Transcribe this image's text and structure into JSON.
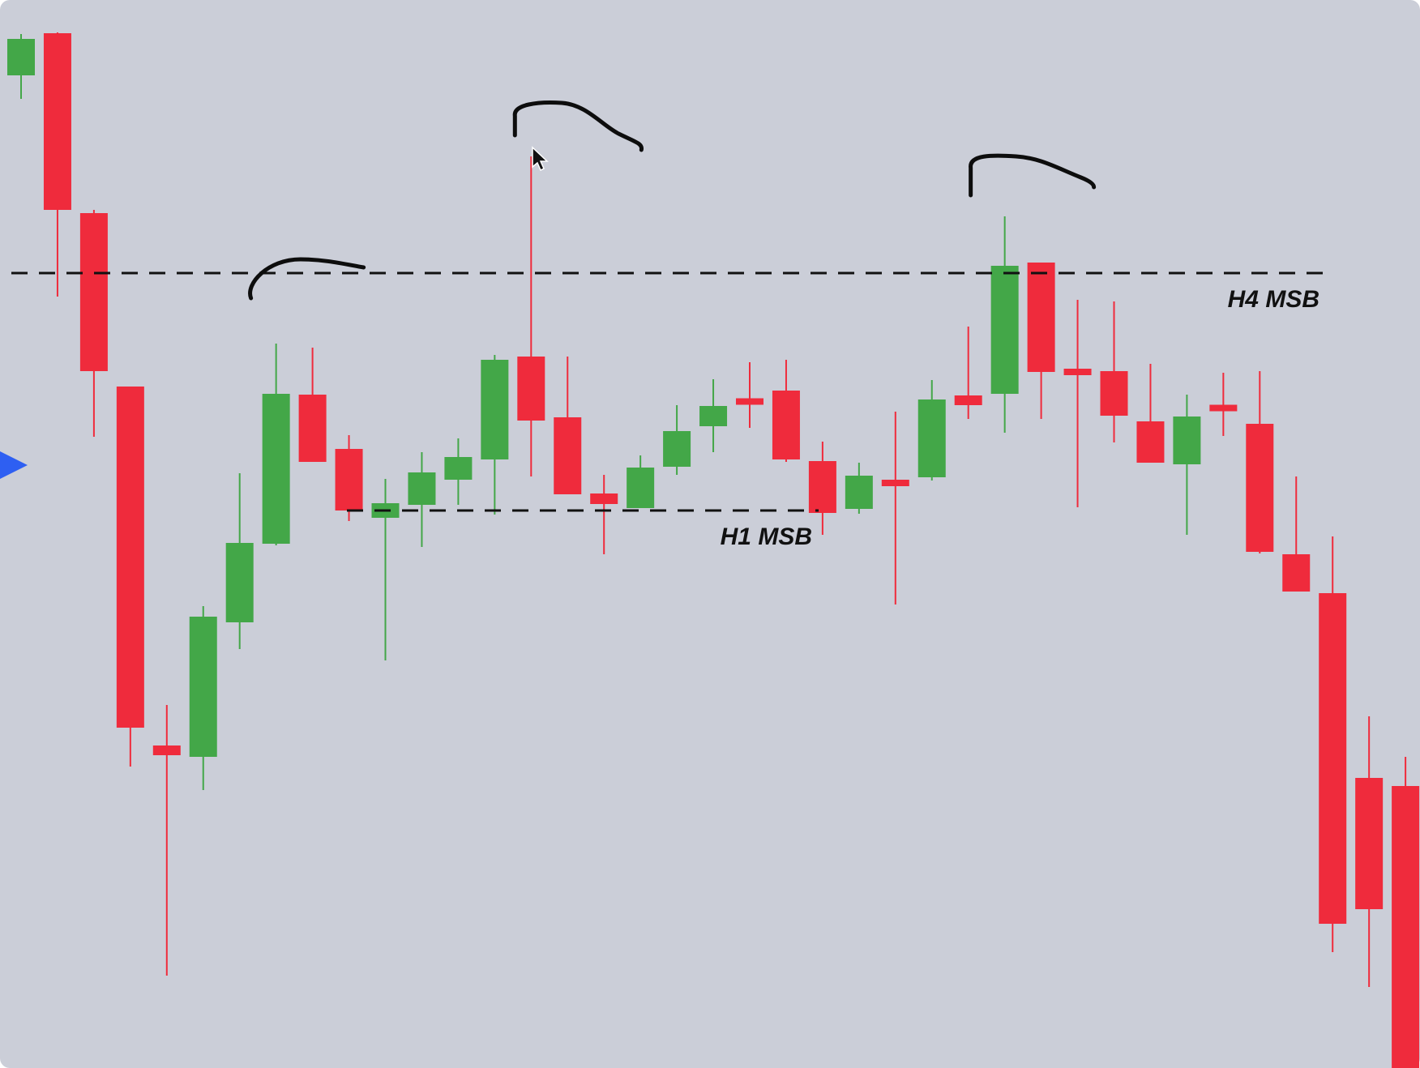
{
  "chart_data": {
    "type": "candlestick",
    "background": "#cbced8",
    "up_color": "#43a748",
    "down_color": "#ef2b3c",
    "ylim": [
      0,
      1318
    ],
    "candles": [
      {
        "open": 1225,
        "close": 1270,
        "high": 1276,
        "low": 1196
      },
      {
        "open": 1277,
        "close": 1059,
        "high": 1278,
        "low": 952
      },
      {
        "open": 1055,
        "close": 860,
        "high": 1059,
        "low": 779
      },
      {
        "open": 841,
        "close": 420,
        "high": 841,
        "low": 372
      },
      {
        "open": 398,
        "close": 386,
        "high": 448,
        "low": 114
      },
      {
        "open": 384,
        "close": 557,
        "high": 570,
        "low": 343
      },
      {
        "open": 550,
        "close": 648,
        "high": 734,
        "low": 517
      },
      {
        "open": 647,
        "close": 832,
        "high": 894,
        "low": 645
      },
      {
        "open": 831,
        "close": 748,
        "high": 889,
        "low": 748
      },
      {
        "open": 764,
        "close": 688,
        "high": 781,
        "low": 675
      },
      {
        "open": 679,
        "close": 697,
        "high": 727,
        "low": 503
      },
      {
        "open": 695,
        "close": 735,
        "high": 760,
        "low": 643
      },
      {
        "open": 726,
        "close": 754,
        "high": 777,
        "low": 695
      },
      {
        "open": 751,
        "close": 874,
        "high": 880,
        "low": 683
      },
      {
        "open": 878,
        "close": 799,
        "high": 1125,
        "low": 730
      },
      {
        "open": 803,
        "close": 708,
        "high": 878,
        "low": 708
      },
      {
        "open": 709,
        "close": 696,
        "high": 732,
        "low": 634
      },
      {
        "open": 691,
        "close": 741,
        "high": 756,
        "low": 691
      },
      {
        "open": 742,
        "close": 786,
        "high": 818,
        "low": 732
      },
      {
        "open": 792,
        "close": 817,
        "high": 850,
        "low": 760
      },
      {
        "open": 824,
        "close": 821,
        "high": 871,
        "low": 790
      },
      {
        "open": 836,
        "close": 751,
        "high": 874,
        "low": 748
      },
      {
        "open": 749,
        "close": 685,
        "high": 773,
        "low": 658
      },
      {
        "open": 690,
        "close": 731,
        "high": 747,
        "low": 684
      },
      {
        "open": 724,
        "close": 720,
        "high": 810,
        "low": 572
      },
      {
        "open": 729,
        "close": 825,
        "high": 849,
        "low": 725
      },
      {
        "open": 830,
        "close": 818,
        "high": 915,
        "low": 801
      },
      {
        "open": 832,
        "close": 990,
        "high": 1051,
        "low": 784
      },
      {
        "open": 994,
        "close": 859,
        "high": 994,
        "low": 801
      },
      {
        "open": 862,
        "close": 856,
        "high": 948,
        "low": 692
      },
      {
        "open": 860,
        "close": 805,
        "high": 946,
        "low": 772
      },
      {
        "open": 798,
        "close": 747,
        "high": 869,
        "low": 747
      },
      {
        "open": 745,
        "close": 804,
        "high": 831,
        "low": 658
      },
      {
        "open": 815,
        "close": 814,
        "high": 858,
        "low": 780
      },
      {
        "open": 795,
        "close": 637,
        "high": 860,
        "low": 635
      },
      {
        "open": 634,
        "close": 588,
        "high": 730,
        "low": 588
      },
      {
        "open": 586,
        "close": 178,
        "high": 656,
        "low": 143
      },
      {
        "open": 358,
        "close": 196,
        "high": 434,
        "low": 100
      },
      {
        "open": 348,
        "close": 0,
        "high": 384,
        "low": 0
      }
    ],
    "levels": [
      {
        "label": "H4 MSB",
        "value": 981
      },
      {
        "label": "H1 MSB",
        "value": 688
      }
    ],
    "swing_high_marks": [
      {
        "candle_index": 7
      },
      {
        "candle_index": 14
      },
      {
        "candle_index": 27
      }
    ]
  }
}
